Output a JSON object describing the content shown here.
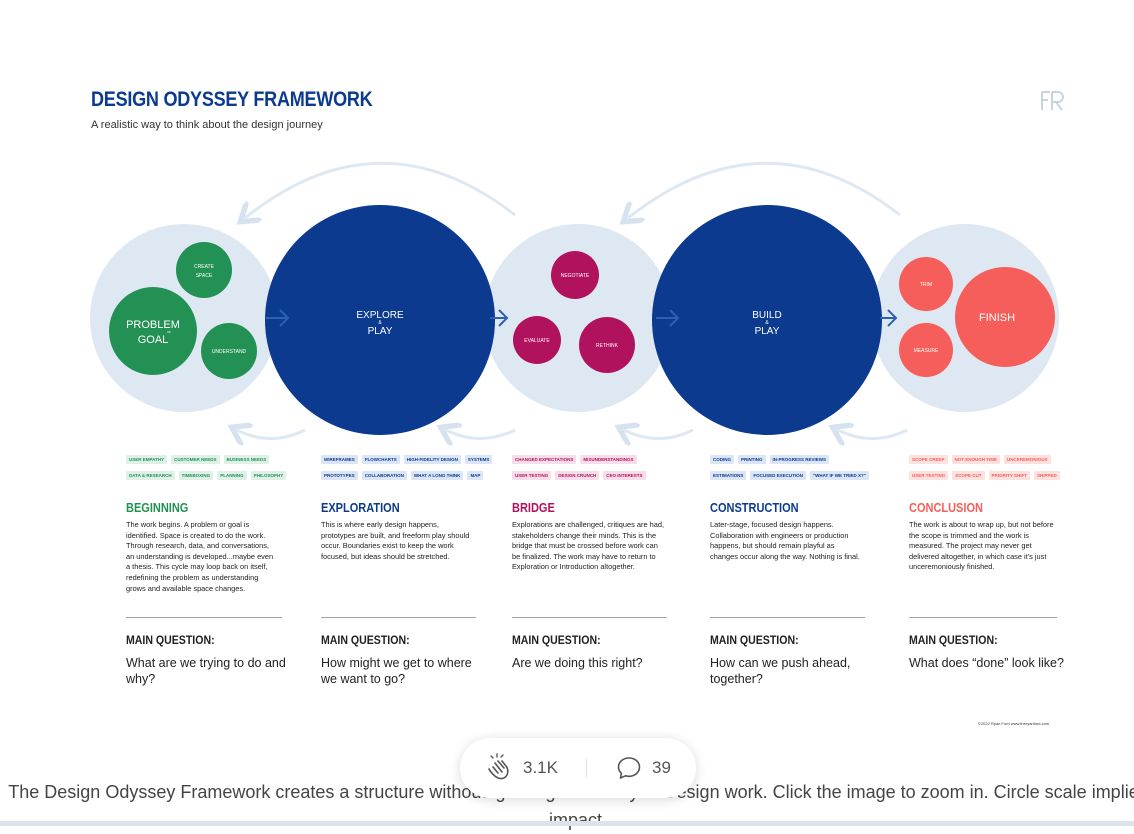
{
  "figure": {
    "title": "DESIGN ODYSSEY FRAMEWORK",
    "subtitle": "A realistic way to think about the design journey",
    "logo": "FR",
    "copyright": "©2022 Ryan Ford www.theryanford.com"
  },
  "colors": {
    "navy": "#0b3a8f",
    "light_bg": "#dde8f3",
    "green": "#239154",
    "magenta": "#b0125e",
    "coral": "#f55e5a",
    "arrow": "#2f5fb0"
  },
  "circles": {
    "problem": "PROBLEM",
    "or1": "or",
    "goal": "GOAL",
    "create": "CREATE",
    "space": "SPACE",
    "understand": "UNDERSTAND",
    "explore": "EXPLORE",
    "amp1": "&",
    "play1": "PLAY",
    "negotiate": "NEGOTIATE",
    "evaluate": "EVALUATE",
    "rethink": "RETHINK",
    "build": "BUILD",
    "amp2": "&",
    "play2": "PLAY",
    "trim": "TRIM",
    "finish": "FINISH",
    "measure": "MEASURE"
  },
  "columns": [
    {
      "title": "BEGINNING",
      "tags": [
        [
          "USER EMPATHY",
          "CUSTOMER NEEDS",
          "BUSINESS NEEDS"
        ],
        [
          "DATA & RESEARCH",
          "TIMEBOXING",
          "PLANNING",
          "PHILOSOPHY"
        ]
      ],
      "body": "The work begins. A problem or goal is identified. Space is created to do the work. Through research, data, and conversations, an understanding is developed...maybe even a thesis. This cycle may loop back on itself, redefining the problem as understanding grows and available space changes.",
      "mq_label": "MAIN QUESTION:",
      "mq": "What are we trying to do and why?"
    },
    {
      "title": "EXPLORATION",
      "tags": [
        [
          "WIREFRAMES",
          "FLOWCHARTS",
          "HIGH-FIDELITY DESIGN",
          "SYSTEMS"
        ],
        [
          "PROTOTYPES",
          "COLLABORATION",
          "WHAT A LONG THINK",
          "MAP"
        ]
      ],
      "body": "This is where early design happens, prototypes are built, and freeform play should occur. Boundaries exist to keep the work focused, but ideas should be stretched.",
      "mq_label": "MAIN QUESTION:",
      "mq": "How might we get to where we want to go?"
    },
    {
      "title": "BRIDGE",
      "tags": [
        [
          "CHANGED EXPECTATIONS",
          "MISUNDERSTANDINGS"
        ],
        [
          "USER TESTING",
          "DESIGN CRUNCH",
          "CEO INTERESTS"
        ]
      ],
      "body": "Explorations are challenged, critiques are had, stakeholders change their minds. This is the bridge that must be crossed before work can be finalized. The work may have to return to Exploration or Introduction altogether.",
      "mq_label": "MAIN QUESTION:",
      "mq": "Are we doing this right?"
    },
    {
      "title": "CONSTRUCTION",
      "tags": [
        [
          "CODING",
          "PRINTING",
          "IN-PROGRESS REVIEWS"
        ],
        [
          "ESTIMATIONS",
          "FOCUSED EXECUTION",
          "\"WHAT IF WE TRIED X?\""
        ]
      ],
      "body": "Later-stage, focused design happens. Collaboration with engineers or production happens, but should remain playful as changes occur along the way. Nothing is final.",
      "mq_label": "MAIN QUESTION:",
      "mq": "How can we push ahead, together?"
    },
    {
      "title": "CONCLUSION",
      "tags": [
        [
          "SCOPE CREEP",
          "NOT ENOUGH TIME",
          "UNCEREMONIOUS"
        ],
        [
          "USER TESTING",
          "SCOPE CUT",
          "PRIORITY SHIFT",
          "SHIPPED"
        ]
      ],
      "body": "The work is about to wrap up, but not before the scope is trimmed and the work is measured. The project may never get delivered altogether, in which case it's just unceremoniously finished.",
      "mq_label": "MAIN QUESTION:",
      "mq": "What does “done” look like?"
    }
  ],
  "actions": {
    "clap_count": "3.1K",
    "comment_count": "39"
  },
  "caption": "The Design Odyssey Framework creates a structure without ignoring the reality of Design work. Click the image to zoom in. Circle scale implies impact."
}
